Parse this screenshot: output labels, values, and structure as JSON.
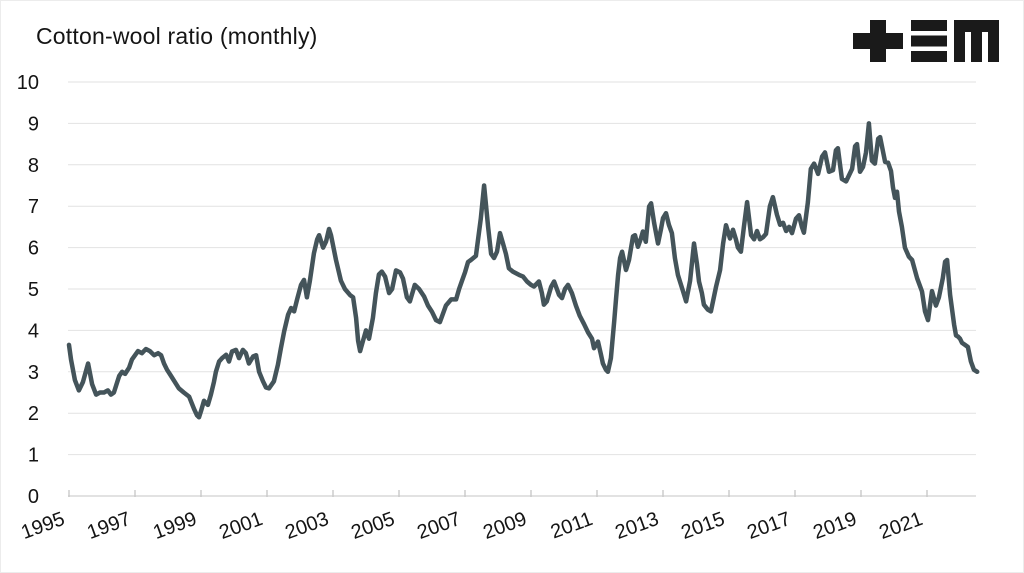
{
  "title": "Cotton-wool ratio (monthly)",
  "logo": {
    "name": "tem-logo",
    "color": "#1a1a1a"
  },
  "colors": {
    "line": "#44545A",
    "grid": "#e2e2e2",
    "baseline": "#d0d0d0",
    "tick": "#c9c9c9",
    "label": "#141414",
    "background": "#ffffff"
  },
  "chart_data": {
    "type": "line",
    "title": "Cotton-wool ratio (monthly)",
    "xlabel": "",
    "ylabel": "",
    "xlim": [
      1995,
      2022.6
    ],
    "ylim": [
      0,
      10
    ],
    "x_ticks": [
      1995,
      1997,
      1999,
      2001,
      2003,
      2005,
      2007,
      2009,
      2011,
      2013,
      2015,
      2017,
      2019,
      2021
    ],
    "y_ticks": [
      0,
      1,
      2,
      3,
      4,
      5,
      6,
      7,
      8,
      9,
      10
    ],
    "grid": "horizontal-only",
    "legend_position": "none",
    "series": [
      {
        "name": "cotton-wool ratio",
        "color": "#44545A",
        "points": [
          [
            1995.0,
            3.65
          ],
          [
            1995.06,
            3.3
          ],
          [
            1995.18,
            2.8
          ],
          [
            1995.3,
            2.55
          ],
          [
            1995.42,
            2.75
          ],
          [
            1995.58,
            3.2
          ],
          [
            1995.7,
            2.7
          ],
          [
            1995.82,
            2.45
          ],
          [
            1995.94,
            2.5
          ],
          [
            1996.06,
            2.5
          ],
          [
            1996.18,
            2.55
          ],
          [
            1996.27,
            2.45
          ],
          [
            1996.36,
            2.5
          ],
          [
            1996.52,
            2.9
          ],
          [
            1996.61,
            3.0
          ],
          [
            1996.7,
            2.95
          ],
          [
            1996.82,
            3.1
          ],
          [
            1996.91,
            3.3
          ],
          [
            1997.09,
            3.5
          ],
          [
            1997.21,
            3.45
          ],
          [
            1997.33,
            3.55
          ],
          [
            1997.45,
            3.5
          ],
          [
            1997.58,
            3.4
          ],
          [
            1997.7,
            3.45
          ],
          [
            1997.79,
            3.4
          ],
          [
            1997.88,
            3.2
          ],
          [
            1997.97,
            3.05
          ],
          [
            1998.09,
            2.9
          ],
          [
            1998.21,
            2.75
          ],
          [
            1998.33,
            2.6
          ],
          [
            1998.48,
            2.5
          ],
          [
            1998.64,
            2.4
          ],
          [
            1998.79,
            2.1
          ],
          [
            1998.88,
            1.95
          ],
          [
            1998.94,
            1.9
          ],
          [
            1999.0,
            2.05
          ],
          [
            1999.09,
            2.3
          ],
          [
            1999.21,
            2.2
          ],
          [
            1999.3,
            2.45
          ],
          [
            1999.39,
            2.75
          ],
          [
            1999.45,
            3.0
          ],
          [
            1999.55,
            3.25
          ],
          [
            1999.64,
            3.33
          ],
          [
            1999.76,
            3.41
          ],
          [
            1999.85,
            3.25
          ],
          [
            1999.94,
            3.49
          ],
          [
            2000.06,
            3.53
          ],
          [
            2000.15,
            3.33
          ],
          [
            2000.27,
            3.53
          ],
          [
            2000.36,
            3.45
          ],
          [
            2000.45,
            3.2
          ],
          [
            2000.58,
            3.37
          ],
          [
            2000.67,
            3.4
          ],
          [
            2000.76,
            3.0
          ],
          [
            2000.88,
            2.77
          ],
          [
            2000.97,
            2.62
          ],
          [
            2001.06,
            2.6
          ],
          [
            2001.21,
            2.77
          ],
          [
            2001.33,
            3.17
          ],
          [
            2001.42,
            3.57
          ],
          [
            2001.52,
            3.98
          ],
          [
            2001.64,
            4.38
          ],
          [
            2001.73,
            4.54
          ],
          [
            2001.82,
            4.46
          ],
          [
            2001.91,
            4.74
          ],
          [
            2002.03,
            5.1
          ],
          [
            2002.12,
            5.22
          ],
          [
            2002.21,
            4.8
          ],
          [
            2002.3,
            5.2
          ],
          [
            2002.42,
            5.86
          ],
          [
            2002.52,
            6.2
          ],
          [
            2002.58,
            6.3
          ],
          [
            2002.7,
            6.0
          ],
          [
            2002.79,
            6.15
          ],
          [
            2002.88,
            6.45
          ],
          [
            2002.94,
            6.3
          ],
          [
            2003.09,
            5.7
          ],
          [
            2003.24,
            5.2
          ],
          [
            2003.36,
            5.0
          ],
          [
            2003.52,
            4.85
          ],
          [
            2003.61,
            4.8
          ],
          [
            2003.7,
            4.3
          ],
          [
            2003.76,
            3.75
          ],
          [
            2003.82,
            3.5
          ],
          [
            2003.91,
            3.75
          ],
          [
            2004.0,
            4.0
          ],
          [
            2004.09,
            3.8
          ],
          [
            2004.21,
            4.3
          ],
          [
            2004.3,
            4.9
          ],
          [
            2004.39,
            5.35
          ],
          [
            2004.48,
            5.42
          ],
          [
            2004.58,
            5.3
          ],
          [
            2004.7,
            4.9
          ],
          [
            2004.79,
            5.0
          ],
          [
            2004.91,
            5.45
          ],
          [
            2005.03,
            5.4
          ],
          [
            2005.12,
            5.25
          ],
          [
            2005.24,
            4.8
          ],
          [
            2005.33,
            4.7
          ],
          [
            2005.48,
            5.1
          ],
          [
            2005.61,
            5.0
          ],
          [
            2005.76,
            4.82
          ],
          [
            2005.88,
            4.6
          ],
          [
            2006.0,
            4.45
          ],
          [
            2006.12,
            4.25
          ],
          [
            2006.24,
            4.2
          ],
          [
            2006.42,
            4.6
          ],
          [
            2006.58,
            4.75
          ],
          [
            2006.73,
            4.75
          ],
          [
            2006.82,
            5.0
          ],
          [
            2006.91,
            5.2
          ],
          [
            2007.0,
            5.4
          ],
          [
            2007.09,
            5.65
          ],
          [
            2007.18,
            5.7
          ],
          [
            2007.33,
            5.8
          ],
          [
            2007.48,
            6.7
          ],
          [
            2007.58,
            7.5
          ],
          [
            2007.7,
            6.5
          ],
          [
            2007.79,
            5.85
          ],
          [
            2007.88,
            5.75
          ],
          [
            2007.97,
            5.9
          ],
          [
            2008.06,
            6.35
          ],
          [
            2008.15,
            6.1
          ],
          [
            2008.24,
            5.85
          ],
          [
            2008.33,
            5.5
          ],
          [
            2008.45,
            5.42
          ],
          [
            2008.64,
            5.34
          ],
          [
            2008.76,
            5.3
          ],
          [
            2008.88,
            5.18
          ],
          [
            2009.0,
            5.1
          ],
          [
            2009.09,
            5.06
          ],
          [
            2009.24,
            5.18
          ],
          [
            2009.33,
            4.9
          ],
          [
            2009.39,
            4.62
          ],
          [
            2009.48,
            4.7
          ],
          [
            2009.61,
            5.05
          ],
          [
            2009.7,
            5.18
          ],
          [
            2009.85,
            4.86
          ],
          [
            2009.94,
            4.78
          ],
          [
            2010.03,
            5.0
          ],
          [
            2010.12,
            5.1
          ],
          [
            2010.24,
            4.9
          ],
          [
            2010.36,
            4.6
          ],
          [
            2010.48,
            4.35
          ],
          [
            2010.61,
            4.15
          ],
          [
            2010.73,
            3.95
          ],
          [
            2010.85,
            3.8
          ],
          [
            2010.91,
            3.57
          ],
          [
            2011.03,
            3.73
          ],
          [
            2011.12,
            3.41
          ],
          [
            2011.18,
            3.2
          ],
          [
            2011.27,
            3.05
          ],
          [
            2011.33,
            3.0
          ],
          [
            2011.42,
            3.33
          ],
          [
            2011.52,
            4.22
          ],
          [
            2011.58,
            4.78
          ],
          [
            2011.64,
            5.34
          ],
          [
            2011.7,
            5.75
          ],
          [
            2011.76,
            5.9
          ],
          [
            2011.88,
            5.46
          ],
          [
            2011.97,
            5.7
          ],
          [
            2012.09,
            6.27
          ],
          [
            2012.15,
            6.3
          ],
          [
            2012.24,
            6.02
          ],
          [
            2012.33,
            6.22
          ],
          [
            2012.39,
            6.39
          ],
          [
            2012.48,
            6.14
          ],
          [
            2012.58,
            6.99
          ],
          [
            2012.64,
            7.07
          ],
          [
            2012.73,
            6.6
          ],
          [
            2012.85,
            6.1
          ],
          [
            2012.94,
            6.45
          ],
          [
            2013.0,
            6.71
          ],
          [
            2013.09,
            6.83
          ],
          [
            2013.18,
            6.55
          ],
          [
            2013.27,
            6.35
          ],
          [
            2013.36,
            5.75
          ],
          [
            2013.45,
            5.34
          ],
          [
            2013.61,
            4.94
          ],
          [
            2013.7,
            4.7
          ],
          [
            2013.82,
            5.2
          ],
          [
            2013.94,
            6.1
          ],
          [
            2014.03,
            5.6
          ],
          [
            2014.09,
            5.18
          ],
          [
            2014.18,
            4.9
          ],
          [
            2014.24,
            4.62
          ],
          [
            2014.36,
            4.5
          ],
          [
            2014.45,
            4.46
          ],
          [
            2014.61,
            5.06
          ],
          [
            2014.73,
            5.46
          ],
          [
            2014.82,
            6.1
          ],
          [
            2014.91,
            6.54
          ],
          [
            2015.03,
            6.22
          ],
          [
            2015.12,
            6.43
          ],
          [
            2015.21,
            6.2
          ],
          [
            2015.27,
            6.0
          ],
          [
            2015.36,
            5.9
          ],
          [
            2015.45,
            6.5
          ],
          [
            2015.55,
            7.1
          ],
          [
            2015.67,
            6.3
          ],
          [
            2015.76,
            6.2
          ],
          [
            2015.85,
            6.4
          ],
          [
            2015.94,
            6.2
          ],
          [
            2016.03,
            6.25
          ],
          [
            2016.12,
            6.33
          ],
          [
            2016.24,
            7.0
          ],
          [
            2016.33,
            7.22
          ],
          [
            2016.45,
            6.8
          ],
          [
            2016.55,
            6.55
          ],
          [
            2016.64,
            6.6
          ],
          [
            2016.73,
            6.4
          ],
          [
            2016.82,
            6.5
          ],
          [
            2016.91,
            6.35
          ],
          [
            2017.03,
            6.7
          ],
          [
            2017.12,
            6.78
          ],
          [
            2017.21,
            6.5
          ],
          [
            2017.27,
            6.36
          ],
          [
            2017.39,
            7.1
          ],
          [
            2017.48,
            7.9
          ],
          [
            2017.58,
            8.03
          ],
          [
            2017.7,
            7.78
          ],
          [
            2017.82,
            8.2
          ],
          [
            2017.91,
            8.3
          ],
          [
            2018.03,
            7.83
          ],
          [
            2018.15,
            7.87
          ],
          [
            2018.24,
            8.35
          ],
          [
            2018.3,
            8.4
          ],
          [
            2018.42,
            7.66
          ],
          [
            2018.55,
            7.6
          ],
          [
            2018.73,
            7.9
          ],
          [
            2018.82,
            8.45
          ],
          [
            2018.88,
            8.5
          ],
          [
            2018.97,
            7.83
          ],
          [
            2019.06,
            7.95
          ],
          [
            2019.15,
            8.3
          ],
          [
            2019.24,
            9.0
          ],
          [
            2019.33,
            8.1
          ],
          [
            2019.42,
            8.03
          ],
          [
            2019.52,
            8.63
          ],
          [
            2019.58,
            8.67
          ],
          [
            2019.73,
            8.07
          ],
          [
            2019.82,
            8.05
          ],
          [
            2019.91,
            7.85
          ],
          [
            2019.97,
            7.45
          ],
          [
            2020.03,
            7.2
          ],
          [
            2020.09,
            7.35
          ],
          [
            2020.15,
            6.87
          ],
          [
            2020.24,
            6.5
          ],
          [
            2020.33,
            6.0
          ],
          [
            2020.45,
            5.78
          ],
          [
            2020.55,
            5.7
          ],
          [
            2020.7,
            5.26
          ],
          [
            2020.85,
            4.94
          ],
          [
            2020.94,
            4.46
          ],
          [
            2021.03,
            4.25
          ],
          [
            2021.15,
            4.95
          ],
          [
            2021.27,
            4.6
          ],
          [
            2021.36,
            4.8
          ],
          [
            2021.48,
            5.26
          ],
          [
            2021.55,
            5.66
          ],
          [
            2021.61,
            5.7
          ],
          [
            2021.7,
            4.86
          ],
          [
            2021.76,
            4.5
          ],
          [
            2021.82,
            4.14
          ],
          [
            2021.88,
            3.88
          ],
          [
            2021.94,
            3.85
          ],
          [
            2022.0,
            3.8
          ],
          [
            2022.06,
            3.7
          ],
          [
            2022.15,
            3.65
          ],
          [
            2022.24,
            3.6
          ],
          [
            2022.33,
            3.25
          ],
          [
            2022.42,
            3.05
          ],
          [
            2022.52,
            3.0
          ]
        ]
      }
    ]
  }
}
